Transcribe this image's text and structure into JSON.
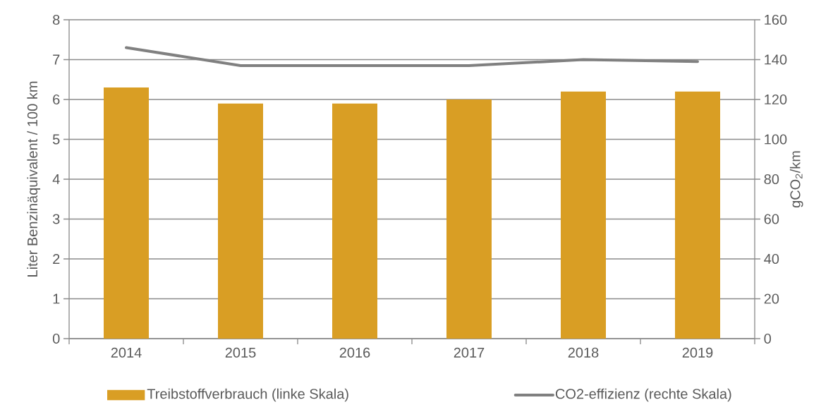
{
  "chart_data": {
    "type": "bar",
    "categories": [
      "2014",
      "2015",
      "2016",
      "2017",
      "2018",
      "2019"
    ],
    "ylabel": "Liter Benzinäquivalent / 100 km",
    "y2label": "gCO$_{2}$/km",
    "series": [
      {
        "name": "Treibstoffverbrauch (linke Skala)",
        "color": "#d99e24",
        "values": [
          6.3,
          5.9,
          5.9,
          6.0,
          6.2,
          6.2
        ]
      },
      {
        "name": "CO2-effizienz (rechte Skala)",
        "type": "line",
        "axis": "y2",
        "color": "#808080",
        "values": [
          146,
          137,
          137,
          137,
          140,
          139
        ]
      }
    ],
    "ylim": [
      0,
      8
    ],
    "yticks": [
      0,
      1,
      2,
      3,
      4,
      5,
      6,
      7,
      8
    ],
    "y2lim": [
      0,
      160
    ],
    "y2ticks": [
      0,
      20,
      40,
      60,
      80,
      100,
      120,
      140,
      160
    ],
    "grid": "y",
    "legend": "bottom",
    "marker": "none",
    "line_style": "solid"
  }
}
